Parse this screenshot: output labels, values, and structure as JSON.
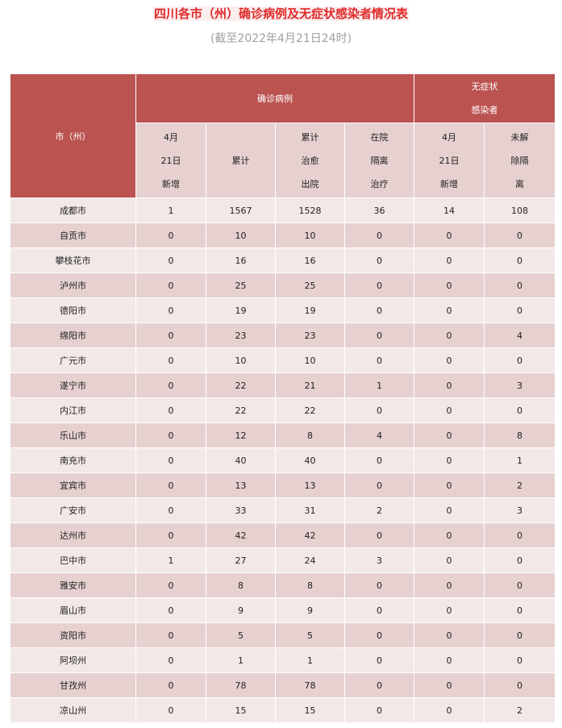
{
  "title": "四川各市（州）确诊病例及无症状感染者情况表",
  "subtitle": "(截至2022年4月21日24时)",
  "colors": {
    "title": "#e02a2a",
    "header_bg": "#bb5350",
    "row_light": "#f3e8e8",
    "row_dark": "#e6d0d0"
  },
  "table": {
    "city_header": "市（州）",
    "confirmed_group": "确诊病例",
    "asymptomatic_group": [
      "无症状",
      "感染者"
    ],
    "subheaders": [
      [
        "4月",
        "21日",
        "新增"
      ],
      [
        "累计"
      ],
      [
        "累计",
        "治愈",
        "出院"
      ],
      [
        "在院",
        "隔离",
        "治疗"
      ],
      [
        "4月",
        "21日",
        "新增"
      ],
      [
        "未解",
        "除隔",
        "离"
      ]
    ],
    "rows": [
      [
        "成都市",
        "1",
        "1567",
        "1528",
        "36",
        "14",
        "108"
      ],
      [
        "自贡市",
        "0",
        "10",
        "10",
        "0",
        "0",
        "0"
      ],
      [
        "攀枝花市",
        "0",
        "16",
        "16",
        "0",
        "0",
        "0"
      ],
      [
        "泸州市",
        "0",
        "25",
        "25",
        "0",
        "0",
        "0"
      ],
      [
        "德阳市",
        "0",
        "19",
        "19",
        "0",
        "0",
        "0"
      ],
      [
        "绵阳市",
        "0",
        "23",
        "23",
        "0",
        "0",
        "4"
      ],
      [
        "广元市",
        "0",
        "10",
        "10",
        "0",
        "0",
        "0"
      ],
      [
        "遂宁市",
        "0",
        "22",
        "21",
        "1",
        "0",
        "3"
      ],
      [
        "内江市",
        "0",
        "22",
        "22",
        "0",
        "0",
        "0"
      ],
      [
        "乐山市",
        "0",
        "12",
        "8",
        "4",
        "0",
        "8"
      ],
      [
        "南充市",
        "0",
        "40",
        "40",
        "0",
        "0",
        "1"
      ],
      [
        "宜宾市",
        "0",
        "13",
        "13",
        "0",
        "0",
        "2"
      ],
      [
        "广安市",
        "0",
        "33",
        "31",
        "2",
        "0",
        "3"
      ],
      [
        "达州市",
        "0",
        "42",
        "42",
        "0",
        "0",
        "0"
      ],
      [
        "巴中市",
        "1",
        "27",
        "24",
        "3",
        "0",
        "0"
      ],
      [
        "雅安市",
        "0",
        "8",
        "8",
        "0",
        "0",
        "0"
      ],
      [
        "眉山市",
        "0",
        "9",
        "9",
        "0",
        "0",
        "0"
      ],
      [
        "资阳市",
        "0",
        "5",
        "5",
        "0",
        "0",
        "0"
      ],
      [
        "阿坝州",
        "0",
        "1",
        "1",
        "0",
        "0",
        "0"
      ],
      [
        "甘孜州",
        "0",
        "78",
        "78",
        "0",
        "0",
        "0"
      ],
      [
        "凉山州",
        "0",
        "15",
        "15",
        "0",
        "0",
        "2"
      ]
    ]
  }
}
